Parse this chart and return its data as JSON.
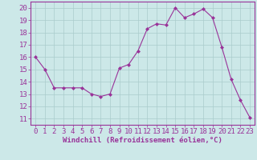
{
  "x": [
    0,
    1,
    2,
    3,
    4,
    5,
    6,
    7,
    8,
    9,
    10,
    11,
    12,
    13,
    14,
    15,
    16,
    17,
    18,
    19,
    20,
    21,
    22,
    23
  ],
  "y": [
    16,
    15,
    13.5,
    13.5,
    13.5,
    13.5,
    13,
    12.8,
    13,
    15.1,
    15.4,
    16.5,
    18.3,
    18.7,
    18.6,
    20.0,
    19.2,
    19.5,
    19.9,
    19.2,
    16.8,
    14.2,
    12.5,
    11.1
  ],
  "line_color": "#993399",
  "marker_color": "#993399",
  "bg_color": "#cce8e8",
  "grid_color": "#aacccc",
  "xlabel": "Windchill (Refroidissement éolien,°C)",
  "ylim": [
    10.5,
    20.5
  ],
  "xlim": [
    -0.5,
    23.5
  ],
  "yticks": [
    11,
    12,
    13,
    14,
    15,
    16,
    17,
    18,
    19,
    20
  ],
  "xticks": [
    0,
    1,
    2,
    3,
    4,
    5,
    6,
    7,
    8,
    9,
    10,
    11,
    12,
    13,
    14,
    15,
    16,
    17,
    18,
    19,
    20,
    21,
    22,
    23
  ],
  "xlabel_color": "#993399",
  "tick_color": "#993399",
  "axis_color": "#993399",
  "font_size": 6.5
}
